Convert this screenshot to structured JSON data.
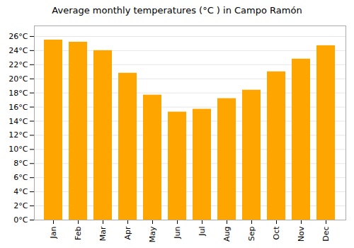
{
  "chart_data": {
    "type": "bar",
    "title": "Average monthly temperatures (°C ) in Campo Ramón",
    "categories": [
      "Jan",
      "Feb",
      "Mar",
      "Apr",
      "May",
      "Jun",
      "Jul",
      "Aug",
      "Sep",
      "Oct",
      "Nov",
      "Dec"
    ],
    "values": [
      25.5,
      25.2,
      24.0,
      20.8,
      17.7,
      15.3,
      15.7,
      17.2,
      18.4,
      21.0,
      22.8,
      24.7
    ],
    "color": "#FFA500",
    "ylim": [
      0,
      27.5
    ],
    "yticks": [
      {
        "value": 0,
        "label": "0°C"
      },
      {
        "value": 2,
        "label": "2°C"
      },
      {
        "value": 4,
        "label": "4°C"
      },
      {
        "value": 6,
        "label": "6°C"
      },
      {
        "value": 8,
        "label": "8°C"
      },
      {
        "value": 10,
        "label": "10°C"
      },
      {
        "value": 12,
        "label": "12°C"
      },
      {
        "value": 14,
        "label": "14°C"
      },
      {
        "value": 16,
        "label": "16°C"
      },
      {
        "value": 18,
        "label": "18°C"
      },
      {
        "value": 20,
        "label": "20°C"
      },
      {
        "value": 22,
        "label": "22°C"
      },
      {
        "value": 24,
        "label": "24°C"
      },
      {
        "value": 26,
        "label": "26°C"
      }
    ],
    "grid": true
  }
}
